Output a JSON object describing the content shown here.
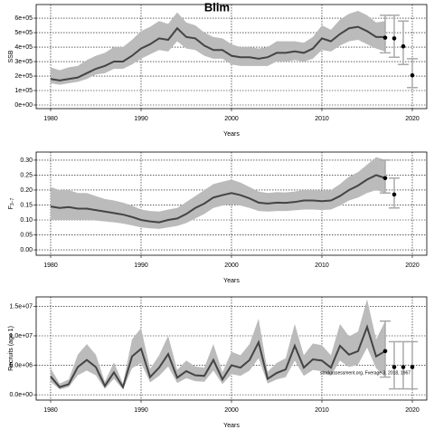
{
  "chart_data": [
    {
      "type": "line",
      "title": "Blim",
      "x_label": "Years",
      "y_label": "SSB",
      "xlim": [
        1978.4,
        2021.6
      ],
      "xticks": [
        1980,
        1990,
        2000,
        2010,
        2020
      ],
      "ylim": [
        -25000,
        694000
      ],
      "yticks": [
        {
          "value": 0,
          "label": "0e+00"
        },
        {
          "value": 100000,
          "label": "1e+05"
        },
        {
          "value": 200000,
          "label": "2e+05"
        },
        {
          "value": 300000,
          "label": "3e+05"
        },
        {
          "value": 400000,
          "label": "4e+05"
        },
        {
          "value": 500000,
          "label": "5e+05"
        },
        {
          "value": 600000,
          "label": "6e+05"
        }
      ],
      "grid": true,
      "line_color": "#444444",
      "band_color": "#bbbbbb",
      "point_color": "#000000",
      "bar_color": "#aaaaaa",
      "x": [
        1980,
        1981,
        1982,
        1983,
        1984,
        1985,
        1986,
        1987,
        1988,
        1989,
        1990,
        1991,
        1992,
        1993,
        1994,
        1995,
        1996,
        1997,
        1998,
        1999,
        2000,
        2001,
        2002,
        2003,
        2004,
        2005,
        2006,
        2007,
        2008,
        2009,
        2010,
        2011,
        2012,
        2013,
        2014,
        2015,
        2016,
        2017
      ],
      "values": [
        180000.0,
        170000.0,
        180000.0,
        190000.0,
        220000.0,
        250000.0,
        270000.0,
        300000.0,
        300000.0,
        340000.0,
        390000.0,
        420000.0,
        460000.0,
        450000.0,
        530000.0,
        470000.0,
        460000.0,
        410000.0,
        380000.0,
        380000.0,
        340000.0,
        330000.0,
        330000.0,
        320000.0,
        330000.0,
        360000.0,
        360000.0,
        370000.0,
        360000.0,
        390000.0,
        460000.0,
        440000.0,
        490000.0,
        530000.0,
        540000.0,
        510000.0,
        470000.0,
        470000.0
      ],
      "lower": [
        150000.0,
        140000.0,
        150000.0,
        160000.0,
        180000.0,
        210000.0,
        220000.0,
        250000.0,
        250000.0,
        280000.0,
        320000.0,
        350000.0,
        380000.0,
        370000.0,
        440000.0,
        390000.0,
        380000.0,
        340000.0,
        320000.0,
        320000.0,
        280000.0,
        270000.0,
        270000.0,
        270000.0,
        270000.0,
        300000.0,
        300000.0,
        310000.0,
        300000.0,
        320000.0,
        380000.0,
        370000.0,
        410000.0,
        440000.0,
        450000.0,
        420000.0,
        390000.0,
        370000.0
      ],
      "upper": [
        260000.0,
        240000.0,
        260000.0,
        270000.0,
        310000.0,
        340000.0,
        360000.0,
        400000.0,
        400000.0,
        450000.0,
        510000.0,
        540000.0,
        580000.0,
        560000.0,
        640000.0,
        570000.0,
        550000.0,
        500000.0,
        470000.0,
        460000.0,
        420000.0,
        400000.0,
        400000.0,
        390000.0,
        400000.0,
        440000.0,
        440000.0,
        440000.0,
        430000.0,
        470000.0,
        550000.0,
        520000.0,
        590000.0,
        630000.0,
        650000.0,
        620000.0,
        570000.0,
        580000.0
      ],
      "projection": {
        "x": [
          2017,
          2018,
          2019,
          2020
        ],
        "values": [
          465000.0,
          460000.0,
          405000.0,
          205000.0
        ],
        "low": [
          360000.0,
          330000.0,
          280000.0,
          120000.0
        ],
        "high": [
          620000.0,
          620000.0,
          580000.0,
          320000.0
        ]
      }
    },
    {
      "type": "line",
      "x_label": "Years",
      "y_label": "F",
      "y_label_sub": "3−7",
      "xlim": [
        1978.4,
        2021.6
      ],
      "xticks": [
        1980,
        1990,
        2000,
        2010,
        2020
      ],
      "ylim": [
        -0.018,
        0.327
      ],
      "yticks": [
        {
          "value": 0,
          "label": "0.00"
        },
        {
          "value": 0.05,
          "label": "0.05"
        },
        {
          "value": 0.1,
          "label": "0.10"
        },
        {
          "value": 0.15,
          "label": "0.15"
        },
        {
          "value": 0.2,
          "label": "0.20"
        },
        {
          "value": 0.25,
          "label": "0.25"
        },
        {
          "value": 0.3,
          "label": "0.30"
        }
      ],
      "grid": true,
      "line_color": "#444444",
      "band_color": "#bbbbbb",
      "point_color": "#000000",
      "bar_color": "#aaaaaa",
      "x": [
        1980,
        1981,
        1982,
        1983,
        1984,
        1985,
        1986,
        1987,
        1988,
        1989,
        1990,
        1991,
        1992,
        1993,
        1994,
        1995,
        1996,
        1997,
        1998,
        1999,
        2000,
        2001,
        2002,
        2003,
        2004,
        2005,
        2006,
        2007,
        2008,
        2009,
        2010,
        2011,
        2012,
        2013,
        2014,
        2015,
        2016,
        2017
      ],
      "values": [
        0.145,
        0.14,
        0.143,
        0.138,
        0.138,
        0.133,
        0.128,
        0.123,
        0.118,
        0.11,
        0.1,
        0.095,
        0.092,
        0.1,
        0.105,
        0.12,
        0.14,
        0.155,
        0.175,
        0.183,
        0.19,
        0.183,
        0.172,
        0.158,
        0.155,
        0.158,
        0.157,
        0.16,
        0.165,
        0.165,
        0.163,
        0.165,
        0.18,
        0.2,
        0.215,
        0.235,
        0.25,
        0.24
      ],
      "lower": [
        0.1,
        0.1,
        0.1,
        0.1,
        0.1,
        0.098,
        0.095,
        0.092,
        0.088,
        0.082,
        0.075,
        0.072,
        0.07,
        0.075,
        0.08,
        0.09,
        0.105,
        0.12,
        0.14,
        0.148,
        0.153,
        0.148,
        0.14,
        0.13,
        0.128,
        0.13,
        0.13,
        0.132,
        0.135,
        0.135,
        0.133,
        0.135,
        0.148,
        0.165,
        0.175,
        0.19,
        0.2,
        0.19
      ],
      "upper": [
        0.21,
        0.2,
        0.2,
        0.19,
        0.19,
        0.18,
        0.17,
        0.165,
        0.158,
        0.148,
        0.135,
        0.13,
        0.128,
        0.135,
        0.14,
        0.16,
        0.18,
        0.2,
        0.22,
        0.228,
        0.235,
        0.225,
        0.21,
        0.195,
        0.19,
        0.193,
        0.192,
        0.195,
        0.2,
        0.2,
        0.198,
        0.2,
        0.22,
        0.245,
        0.26,
        0.285,
        0.31,
        0.3
      ],
      "projection": {
        "x": [
          2017,
          2018
        ],
        "values": [
          0.24,
          0.185
        ],
        "low": [
          0.19,
          0.14
        ],
        "high": [
          0.3,
          0.24
        ]
      }
    },
    {
      "type": "line",
      "x_label": "Years",
      "y_label": "Recruits (age 1)",
      "annotation": "stockassessment.org, Fverage 3, 2018, 1967",
      "xlim": [
        1978.4,
        2021.6
      ],
      "xticks": [
        1980,
        1990,
        2000,
        2010,
        2020
      ],
      "ylim": [
        -900000,
        16600000
      ],
      "yticks": [
        {
          "value": 0,
          "label": "0.0e+00"
        },
        {
          "value": 5000000,
          "label": "5.0e+06"
        },
        {
          "value": 10000000,
          "label": "1.0e+07"
        },
        {
          "value": 15000000,
          "label": "1.5e+07"
        }
      ],
      "grid": true,
      "line_color": "#444444",
      "band_color": "#bbbbbb",
      "point_color": "#000000",
      "bar_color": "#aaaaaa",
      "x": [
        1980,
        1981,
        1982,
        1983,
        1984,
        1985,
        1986,
        1987,
        1988,
        1989,
        1990,
        1991,
        1992,
        1993,
        1994,
        1995,
        1996,
        1997,
        1998,
        1999,
        2000,
        2001,
        2002,
        2003,
        2004,
        2005,
        2006,
        2007,
        2008,
        2009,
        2010,
        2011,
        2012,
        2013,
        2014,
        2015,
        2016,
        2017
      ],
      "values": [
        3100000.0,
        1300000.0,
        1800000.0,
        4700000.0,
        5900000.0,
        4700000.0,
        1500000.0,
        3800000.0,
        1300000.0,
        6500000.0,
        7800000.0,
        3000000.0,
        4600000.0,
        6900000.0,
        2900000.0,
        4000000.0,
        3300000.0,
        3200000.0,
        5900000.0,
        2600000.0,
        5000000.0,
        4600000.0,
        5900000.0,
        8900000.0,
        2700000.0,
        3700000.0,
        4300000.0,
        8300000.0,
        4600000.0,
        6000000.0,
        5800000.0,
        4600000.0,
        8300000.0,
        6800000.0,
        7400000.0,
        11500000.0,
        6500000.0,
        7400000.0
      ],
      "lower": [
        2200000.0,
        900000.0,
        1300000.0,
        3300000.0,
        4100000.0,
        3300000.0,
        1000000.0,
        2700000.0,
        900000.0,
        4500000.0,
        5400000.0,
        2100000.0,
        3200000.0,
        4800000.0,
        2000000.0,
        2800000.0,
        2300000.0,
        2200000.0,
        4100000.0,
        1800000.0,
        3500000.0,
        3200000.0,
        4100000.0,
        6200000.0,
        1900000.0,
        2600000.0,
        3000000.0,
        5800000.0,
        3200000.0,
        4200000.0,
        4000000.0,
        3200000.0,
        5800000.0,
        4700000.0,
        5100000.0,
        8000000.0,
        4500000.0,
        3000000.0
      ],
      "upper": [
        4500000.0,
        1900000.0,
        2600000.0,
        6800000.0,
        8600000.0,
        6800000.0,
        2200000.0,
        5500000.0,
        1900000.0,
        9400000.0,
        11300000.0,
        4400000.0,
        6700000.0,
        10000000.0,
        4200000.0,
        5800000.0,
        4800000.0,
        4600000.0,
        8600000.0,
        3800000.0,
        7300000.0,
        6700000.0,
        8600000.0,
        12900000.0,
        3900000.0,
        5400000.0,
        6200000.0,
        12000000.0,
        6700000.0,
        8700000.0,
        8400000.0,
        6700000.0,
        12000000.0,
        9900000.0,
        10700000.0,
        16200000.0,
        9400000.0,
        12500000.0
      ],
      "projection": {
        "x": [
          2017,
          2018,
          2019,
          2020
        ],
        "values": [
          7400000.0,
          4700000.0,
          4700000.0,
          4700000.0
        ],
        "low": [
          3000000.0,
          1000000.0,
          1000000.0,
          1000000.0
        ],
        "high": [
          12500000.0,
          9000000.0,
          9000000.0,
          9000000.0
        ]
      }
    }
  ]
}
